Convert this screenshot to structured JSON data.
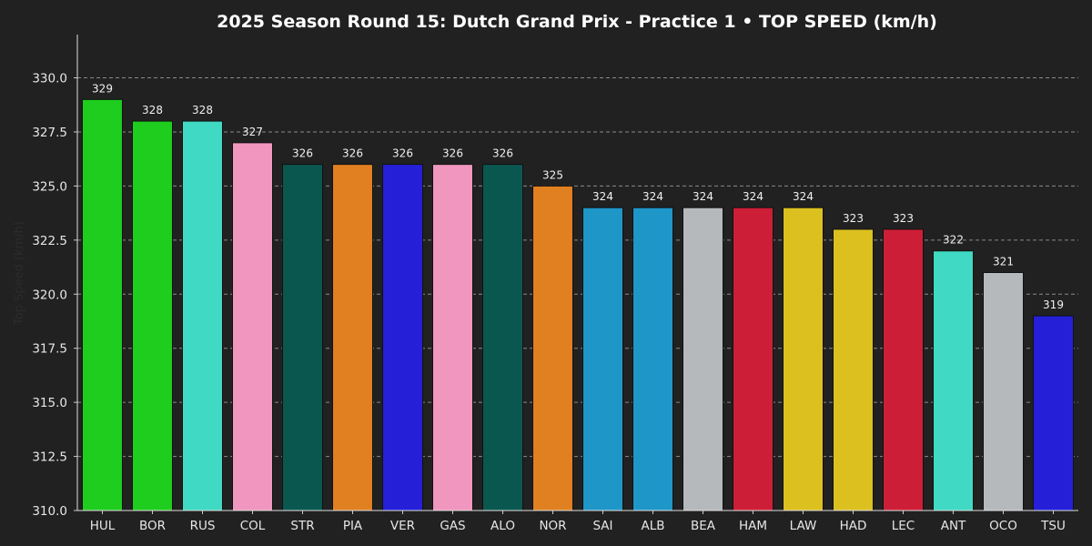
{
  "chart_data": {
    "type": "bar",
    "title": "2025 Season Round 15: Dutch Grand Prix - Practice 1  •  TOP SPEED (km/h)",
    "xlabel": "",
    "ylabel": "Top Speed (km/h)",
    "ylim": [
      310.0,
      332.0
    ],
    "yticks": [
      "310.0",
      "312.5",
      "315.0",
      "317.5",
      "320.0",
      "322.5",
      "325.0",
      "327.5",
      "330.0"
    ],
    "grid": "horizontal dashed",
    "categories": [
      "HUL",
      "BOR",
      "RUS",
      "COL",
      "STR",
      "PIA",
      "VER",
      "GAS",
      "ALO",
      "NOR",
      "SAI",
      "ALB",
      "BEA",
      "HAM",
      "LAW",
      "HAD",
      "LEC",
      "ANT",
      "OCO",
      "TSU"
    ],
    "values": [
      329,
      328,
      328,
      327,
      326,
      326,
      326,
      326,
      326,
      325,
      324,
      324,
      324,
      324,
      324,
      323,
      323,
      322,
      321,
      319
    ],
    "value_labels": [
      "329",
      "328",
      "328",
      "327",
      "326",
      "326",
      "326",
      "326",
      "326",
      "325",
      "324",
      "324",
      "324",
      "324",
      "324",
      "323",
      "323",
      "322",
      "321",
      "319"
    ],
    "colors": [
      "#1ecd1e",
      "#1ecd1e",
      "#40d9c3",
      "#f096bf",
      "#0a5750",
      "#e08020",
      "#2520d8",
      "#f096bf",
      "#0a5750",
      "#e08020",
      "#1e96c8",
      "#1e96c8",
      "#b6b9bb",
      "#cd1e38",
      "#dcc020",
      "#dcc020",
      "#cd1e38",
      "#40d9c3",
      "#b6b9bb",
      "#2520d8"
    ]
  }
}
